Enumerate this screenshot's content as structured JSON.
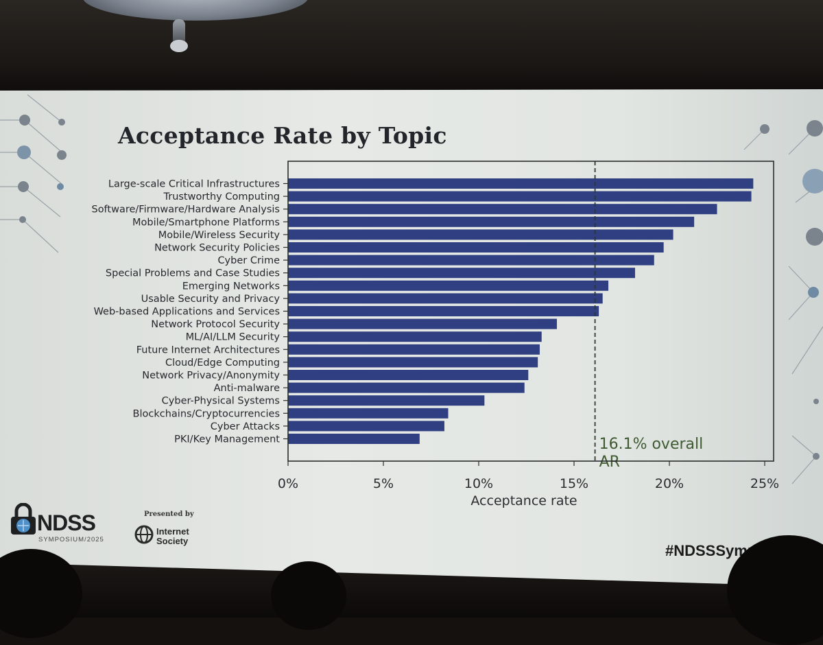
{
  "slide": {
    "title": "Acceptance Rate by Topic",
    "logo_name": "NDSS",
    "logo_subtitle": "SYMPOSIUM/2025",
    "presented_by": "Presented by",
    "sponsor": "Internet Society",
    "hashtag": "#NDSSSympo"
  },
  "colors": {
    "bar": "#2f3f82",
    "frame": "#2a2c2e",
    "reference_line": "#2d382c",
    "annotation": "#3f5a31"
  },
  "chart_data": {
    "type": "bar",
    "orientation": "horizontal",
    "categories": [
      "Large-scale Critical Infrastructures",
      "Trustworthy Computing",
      "Software/Firmware/Hardware Analysis",
      "Mobile/Smartphone Platforms",
      "Mobile/Wireless Security",
      "Network Security Policies",
      "Cyber Crime",
      "Special Problems and Case Studies",
      "Emerging Networks",
      "Usable Security and Privacy",
      "Web-based Applications and Services",
      "Network Protocol Security",
      "ML/AI/LLM Security",
      "Future Internet Architectures",
      "Cloud/Edge Computing",
      "Network Privacy/Anonymity",
      "Anti-malware",
      "Cyber-Physical Systems",
      "Blockchains/Cryptocurrencies",
      "Cyber Attacks",
      "PKI/Key Management"
    ],
    "values": [
      24.4,
      24.3,
      22.5,
      21.3,
      20.2,
      19.7,
      19.2,
      18.2,
      16.8,
      16.5,
      16.3,
      14.1,
      13.3,
      13.2,
      13.1,
      12.6,
      12.4,
      10.3,
      8.4,
      8.2,
      6.9
    ],
    "xlabel": "Acceptance rate",
    "ylabel": "",
    "xlim": [
      0,
      25
    ],
    "xticks": [
      0,
      5,
      10,
      15,
      20,
      25
    ],
    "xtick_labels": [
      "0%",
      "5%",
      "10%",
      "15%",
      "20%",
      "25%"
    ],
    "reference_line": {
      "value": 16.1,
      "label": "16.1% overall AR",
      "style": "dashed"
    },
    "grid": false,
    "legend": false
  }
}
